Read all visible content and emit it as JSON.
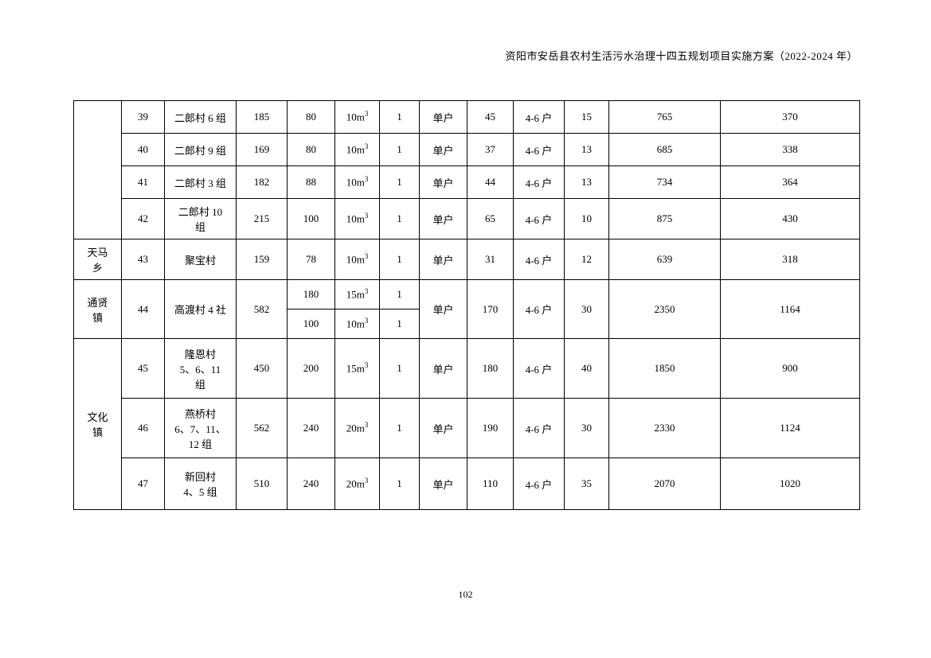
{
  "header_text": "资阳市安岳县农村生活污水治理十四五规划项目实施方案（2022-2024 年）",
  "page_number": "102",
  "rows": {
    "r39": {
      "num": "39",
      "village": "二郎村 6 组",
      "c4": "185",
      "c5": "80",
      "c6": "10m³",
      "c7": "1",
      "c8": "单户",
      "c9": "45",
      "c10": "4-6 户",
      "c11": "15",
      "c12": "765",
      "c13": "370"
    },
    "r40": {
      "num": "40",
      "village": "二郎村 9 组",
      "c4": "169",
      "c5": "80",
      "c6": "10m³",
      "c7": "1",
      "c8": "单户",
      "c9": "37",
      "c10": "4-6 户",
      "c11": "13",
      "c12": "685",
      "c13": "338"
    },
    "r41": {
      "num": "41",
      "village": "二郎村 3 组",
      "c4": "182",
      "c5": "88",
      "c6": "10m³",
      "c7": "1",
      "c8": "单户",
      "c9": "44",
      "c10": "4-6 户",
      "c11": "13",
      "c12": "734",
      "c13": "364"
    },
    "r42": {
      "num": "42",
      "village": "二郎村 10\n组",
      "c4": "215",
      "c5": "100",
      "c6": "10m³",
      "c7": "1",
      "c8": "单户",
      "c9": "65",
      "c10": "4-6 户",
      "c11": "10",
      "c12": "875",
      "c13": "430"
    },
    "r43": {
      "township": "天马\n乡",
      "num": "43",
      "village": "聚宝村",
      "c4": "159",
      "c5": "78",
      "c6": "10m³",
      "c7": "1",
      "c8": "单户",
      "c9": "31",
      "c10": "4-6 户",
      "c11": "12",
      "c12": "639",
      "c13": "318"
    },
    "r44": {
      "township": "通贤\n镇",
      "num": "44",
      "village": "高渡村 4 社",
      "c4": "582",
      "c5a": "180",
      "c6a": "15m³",
      "c7a": "1",
      "c5b": "100",
      "c6b": "10m³",
      "c7b": "1",
      "c8": "单户",
      "c9": "170",
      "c10": "4-6 户",
      "c11": "30",
      "c12": "2350",
      "c13": "1164"
    },
    "r45": {
      "township": "文化\n镇",
      "num": "45",
      "village": "隆恩村\n5、6、11\n组",
      "c4": "450",
      "c5": "200",
      "c6": "15m³",
      "c7": "1",
      "c8": "单户",
      "c9": "180",
      "c10": "4-6 户",
      "c11": "40",
      "c12": "1850",
      "c13": "900"
    },
    "r46": {
      "num": "46",
      "village": "燕桥村\n6、7、11、\n12 组",
      "c4": "562",
      "c5": "240",
      "c6": "20m³",
      "c7": "1",
      "c8": "单户",
      "c9": "190",
      "c10": "4-6 户",
      "c11": "30",
      "c12": "2330",
      "c13": "1124"
    },
    "r47": {
      "num": "47",
      "village": "新回村\n4、5 组",
      "c4": "510",
      "c5": "240",
      "c6": "20m³",
      "c7": "1",
      "c8": "单户",
      "c9": "110",
      "c10": "4-6 户",
      "c11": "35",
      "c12": "2070",
      "c13": "1020"
    }
  }
}
